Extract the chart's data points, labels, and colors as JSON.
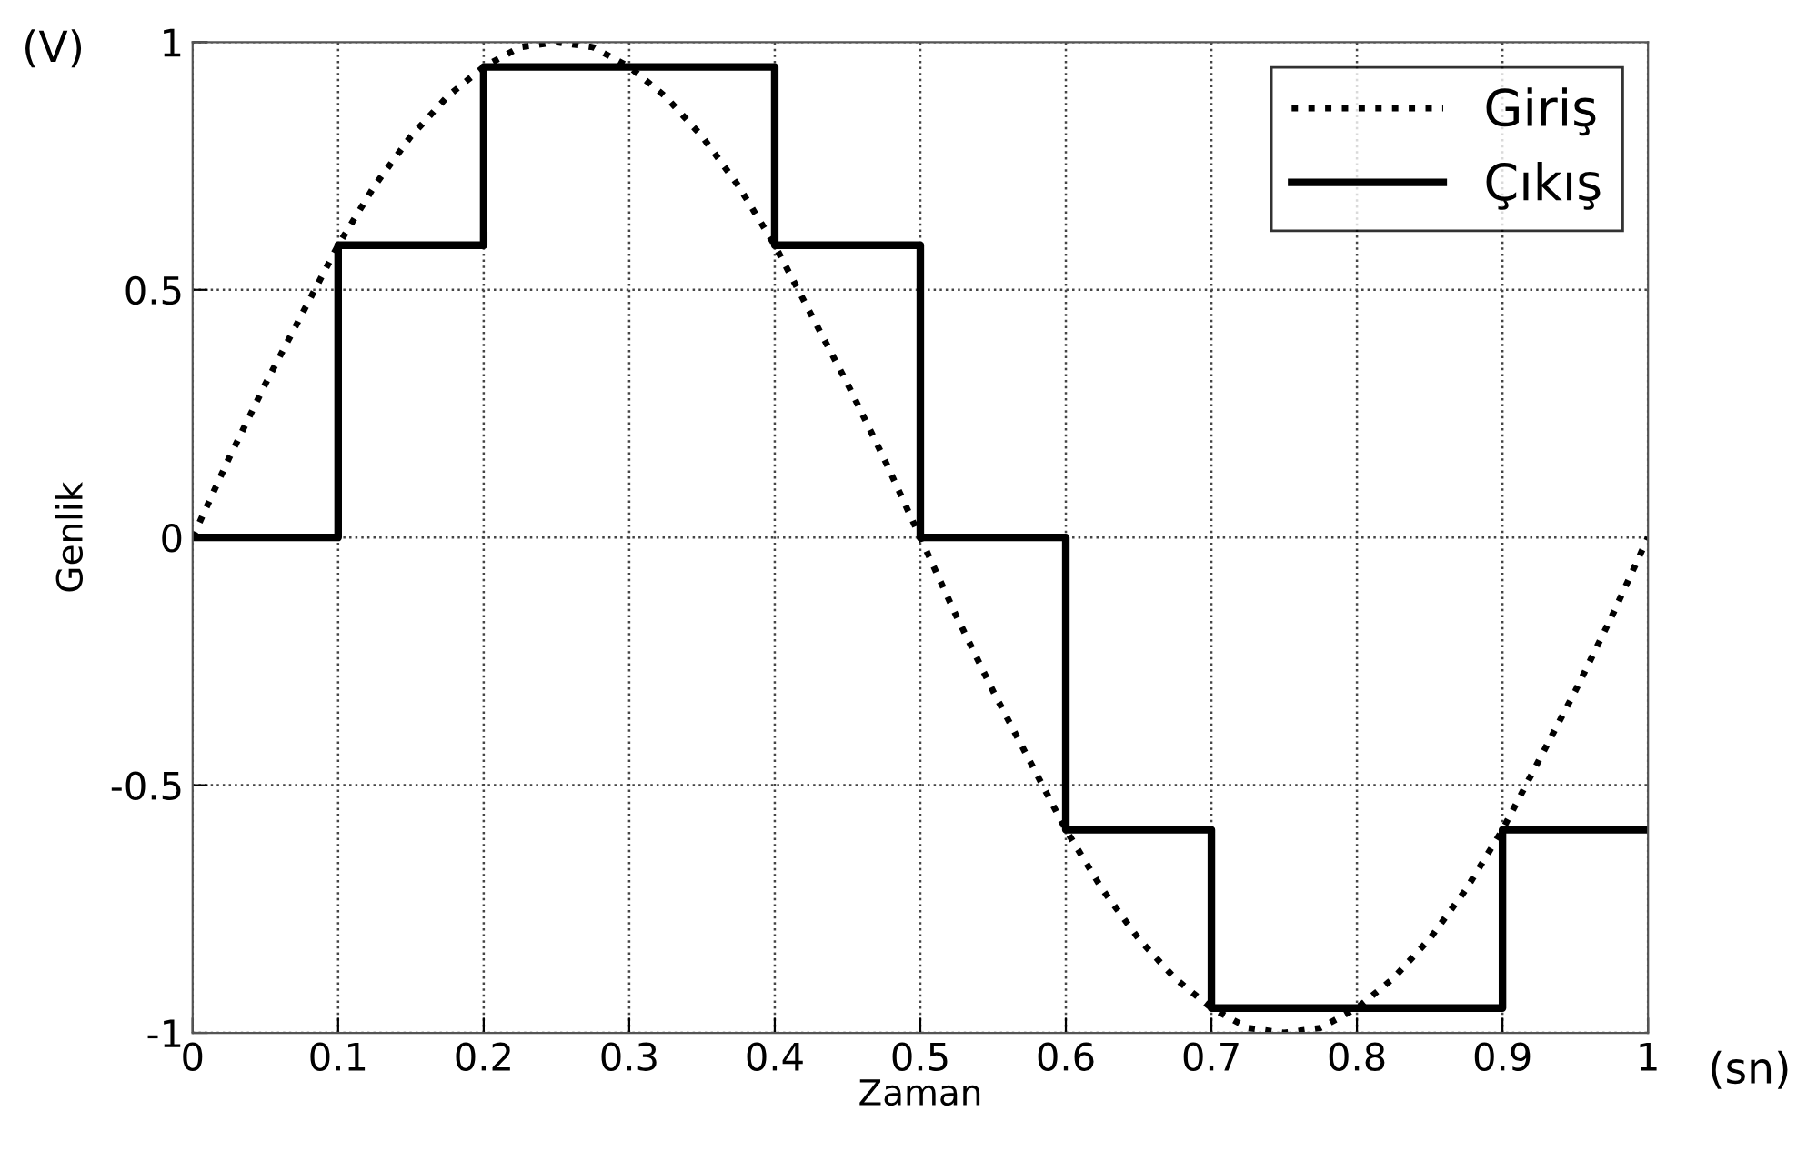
{
  "chart_data": {
    "type": "line",
    "xlabel": "Zaman",
    "ylabel": "Genlik",
    "annotations": [
      "(V)",
      "(sn)"
    ],
    "xlim": [
      0,
      1
    ],
    "ylim": [
      -1,
      1
    ],
    "xticks": [
      0,
      0.1,
      0.2,
      0.3,
      0.4,
      0.5,
      0.6,
      0.7,
      0.8,
      0.9,
      1
    ],
    "yticks": [
      -1,
      -0.5,
      0,
      0.5,
      1
    ],
    "grid": true,
    "legend": "top right",
    "series": [
      {
        "name": "Giriş",
        "color": "#000000",
        "line_style": "dotted",
        "x": [
          0,
          0.025,
          0.05,
          0.075,
          0.1,
          0.125,
          0.15,
          0.175,
          0.2,
          0.225,
          0.25,
          0.275,
          0.3,
          0.325,
          0.35,
          0.375,
          0.4,
          0.425,
          0.45,
          0.475,
          0.5,
          0.525,
          0.55,
          0.575,
          0.6,
          0.625,
          0.65,
          0.675,
          0.7,
          0.725,
          0.75,
          0.775,
          0.8,
          0.825,
          0.85,
          0.875,
          0.9,
          0.925,
          0.95,
          0.975,
          1
        ],
        "values": [
          0,
          0.16,
          0.31,
          0.45,
          0.59,
          0.71,
          0.81,
          0.89,
          0.95,
          0.99,
          1,
          0.99,
          0.95,
          0.89,
          0.81,
          0.71,
          0.59,
          0.45,
          0.31,
          0.16,
          0,
          -0.16,
          -0.31,
          -0.45,
          -0.59,
          -0.71,
          -0.81,
          -0.89,
          -0.95,
          -0.99,
          -1,
          -0.99,
          -0.95,
          -0.89,
          -0.81,
          -0.71,
          -0.59,
          -0.45,
          -0.31,
          -0.16,
          0
        ]
      },
      {
        "name": "Çıkış",
        "type": "step",
        "color": "#000000",
        "line_style": "solid",
        "x": [
          0,
          0.1,
          0.2,
          0.3,
          0.4,
          0.5,
          0.6,
          0.7,
          0.8,
          0.9,
          1
        ],
        "values": [
          0,
          0.59,
          0.95,
          0.95,
          0.59,
          0,
          -0.59,
          -0.95,
          -0.95,
          -0.59,
          -0.59
        ]
      }
    ]
  }
}
